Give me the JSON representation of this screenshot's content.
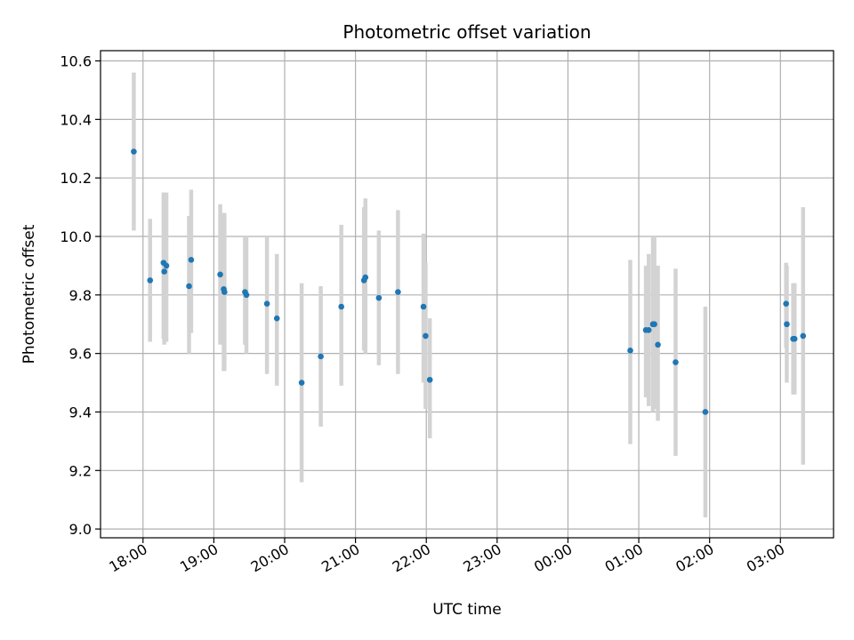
{
  "chart_data": {
    "type": "scatter",
    "title": "Photometric offset variation",
    "xlabel": "UTC time",
    "ylabel": "Photometric offset",
    "grid": true,
    "x_unit": "hours since 18:00 UTC (continuous across midnight)",
    "xlim": [
      -0.6,
      9.75
    ],
    "ylim": [
      8.97,
      10.635
    ],
    "xticks": [
      {
        "value": 0,
        "label": "18:00"
      },
      {
        "value": 1,
        "label": "19:00"
      },
      {
        "value": 2,
        "label": "20:00"
      },
      {
        "value": 3,
        "label": "21:00"
      },
      {
        "value": 4,
        "label": "22:00"
      },
      {
        "value": 5,
        "label": "23:00"
      },
      {
        "value": 6,
        "label": "00:00"
      },
      {
        "value": 7,
        "label": "01:00"
      },
      {
        "value": 8,
        "label": "02:00"
      },
      {
        "value": 9,
        "label": "03:00"
      }
    ],
    "yticks": [
      {
        "value": 9.0,
        "label": "9.0"
      },
      {
        "value": 9.2,
        "label": "9.2"
      },
      {
        "value": 9.4,
        "label": "9.4"
      },
      {
        "value": 9.6,
        "label": "9.6"
      },
      {
        "value": 9.8,
        "label": "9.8"
      },
      {
        "value": 10.0,
        "label": "10.0"
      },
      {
        "value": 10.2,
        "label": "10.2"
      },
      {
        "value": 10.4,
        "label": "10.4"
      },
      {
        "value": 10.6,
        "label": "10.6"
      }
    ],
    "colors": {
      "point": "#1f77b4",
      "errorbar": "#d3d3d3",
      "grid": "#b0b0b0",
      "axes": "#000000"
    },
    "points": [
      {
        "x": -0.13,
        "y": 10.29,
        "lo": 10.02,
        "hi": 10.56
      },
      {
        "x": 0.1,
        "y": 9.85,
        "lo": 9.64,
        "hi": 10.06
      },
      {
        "x": 0.29,
        "y": 9.91,
        "lo": 9.65,
        "hi": 10.15
      },
      {
        "x": 0.3,
        "y": 9.88,
        "lo": 9.63,
        "hi": 10.15
      },
      {
        "x": 0.33,
        "y": 9.9,
        "lo": 9.64,
        "hi": 10.15
      },
      {
        "x": 0.65,
        "y": 9.83,
        "lo": 9.6,
        "hi": 10.07
      },
      {
        "x": 0.68,
        "y": 9.92,
        "lo": 9.67,
        "hi": 10.16
      },
      {
        "x": 1.09,
        "y": 9.87,
        "lo": 9.63,
        "hi": 10.11
      },
      {
        "x": 1.14,
        "y": 9.82,
        "lo": 9.54,
        "hi": 10.08
      },
      {
        "x": 1.15,
        "y": 9.81,
        "lo": 9.54,
        "hi": 10.08
      },
      {
        "x": 1.44,
        "y": 9.81,
        "lo": 9.63,
        "hi": 10.0
      },
      {
        "x": 1.46,
        "y": 9.8,
        "lo": 9.6,
        "hi": 10.0
      },
      {
        "x": 1.75,
        "y": 9.77,
        "lo": 9.53,
        "hi": 10.0
      },
      {
        "x": 1.89,
        "y": 9.72,
        "lo": 9.49,
        "hi": 9.94
      },
      {
        "x": 2.24,
        "y": 9.5,
        "lo": 9.16,
        "hi": 9.84
      },
      {
        "x": 2.51,
        "y": 9.59,
        "lo": 9.35,
        "hi": 9.83
      },
      {
        "x": 2.8,
        "y": 9.76,
        "lo": 9.49,
        "hi": 10.04
      },
      {
        "x": 3.12,
        "y": 9.85,
        "lo": 9.61,
        "hi": 10.1
      },
      {
        "x": 3.14,
        "y": 9.86,
        "lo": 9.6,
        "hi": 10.13
      },
      {
        "x": 3.33,
        "y": 9.79,
        "lo": 9.56,
        "hi": 10.02
      },
      {
        "x": 3.6,
        "y": 9.81,
        "lo": 9.53,
        "hi": 10.09
      },
      {
        "x": 3.96,
        "y": 9.76,
        "lo": 9.5,
        "hi": 10.01
      },
      {
        "x": 3.99,
        "y": 9.66,
        "lo": 9.41,
        "hi": 9.91
      },
      {
        "x": 4.05,
        "y": 9.51,
        "lo": 9.31,
        "hi": 9.72
      },
      {
        "x": 6.88,
        "y": 9.61,
        "lo": 9.29,
        "hi": 9.92
      },
      {
        "x": 7.1,
        "y": 9.68,
        "lo": 9.45,
        "hi": 9.9
      },
      {
        "x": 7.14,
        "y": 9.68,
        "lo": 9.42,
        "hi": 9.94
      },
      {
        "x": 7.2,
        "y": 9.7,
        "lo": 9.4,
        "hi": 10.0
      },
      {
        "x": 7.22,
        "y": 9.7,
        "lo": 9.41,
        "hi": 10.0
      },
      {
        "x": 7.27,
        "y": 9.63,
        "lo": 9.37,
        "hi": 9.9
      },
      {
        "x": 7.52,
        "y": 9.57,
        "lo": 9.25,
        "hi": 9.89
      },
      {
        "x": 7.94,
        "y": 9.4,
        "lo": 9.04,
        "hi": 9.76
      },
      {
        "x": 9.08,
        "y": 9.77,
        "lo": 9.62,
        "hi": 9.91
      },
      {
        "x": 9.09,
        "y": 9.7,
        "lo": 9.5,
        "hi": 9.9
      },
      {
        "x": 9.18,
        "y": 9.65,
        "lo": 9.46,
        "hi": 9.84
      },
      {
        "x": 9.2,
        "y": 9.65,
        "lo": 9.46,
        "hi": 9.84
      },
      {
        "x": 9.32,
        "y": 9.66,
        "lo": 9.22,
        "hi": 10.1
      }
    ]
  }
}
